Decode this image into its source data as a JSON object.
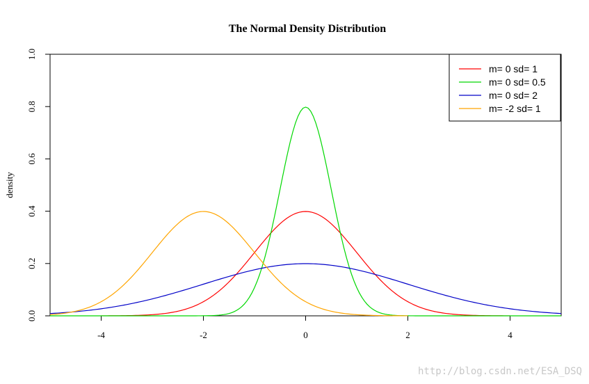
{
  "chart_data": {
    "type": "line",
    "title": "The Normal Density Distribution",
    "xlabel": "",
    "ylabel": "density",
    "xlim": [
      -5,
      5
    ],
    "ylim": [
      0,
      1
    ],
    "xticks": [
      -4,
      -2,
      0,
      2,
      4
    ],
    "xtick_labels": [
      "-4",
      "-2",
      "0",
      "2",
      "4"
    ],
    "yticks": [
      0,
      0.2,
      0.4,
      0.6,
      0.8,
      1
    ],
    "ytick_labels": [
      "0.0",
      "0.2",
      "0.4",
      "0.6",
      "0.8",
      "1.0"
    ],
    "grid": false,
    "legend_position": "top-right",
    "series": [
      {
        "name": "m= 0  sd= 1",
        "mean": 0,
        "sd": 1,
        "color": "#ff0000",
        "x_range": [
          -4,
          4
        ]
      },
      {
        "name": "m= 0  sd= 0.5",
        "mean": 0,
        "sd": 0.5,
        "color": "#00d800",
        "x_range": [
          -5,
          5
        ]
      },
      {
        "name": "m= 0  sd= 2",
        "mean": 0,
        "sd": 2,
        "color": "#0000c8",
        "x_range": [
          -5,
          5
        ]
      },
      {
        "name": "m= -2  sd= 1",
        "mean": -2,
        "sd": 1,
        "color": "#ffa500",
        "x_range": [
          -5,
          2
        ]
      }
    ]
  },
  "watermark": "http://blog.csdn.net/ESA_DSQ"
}
